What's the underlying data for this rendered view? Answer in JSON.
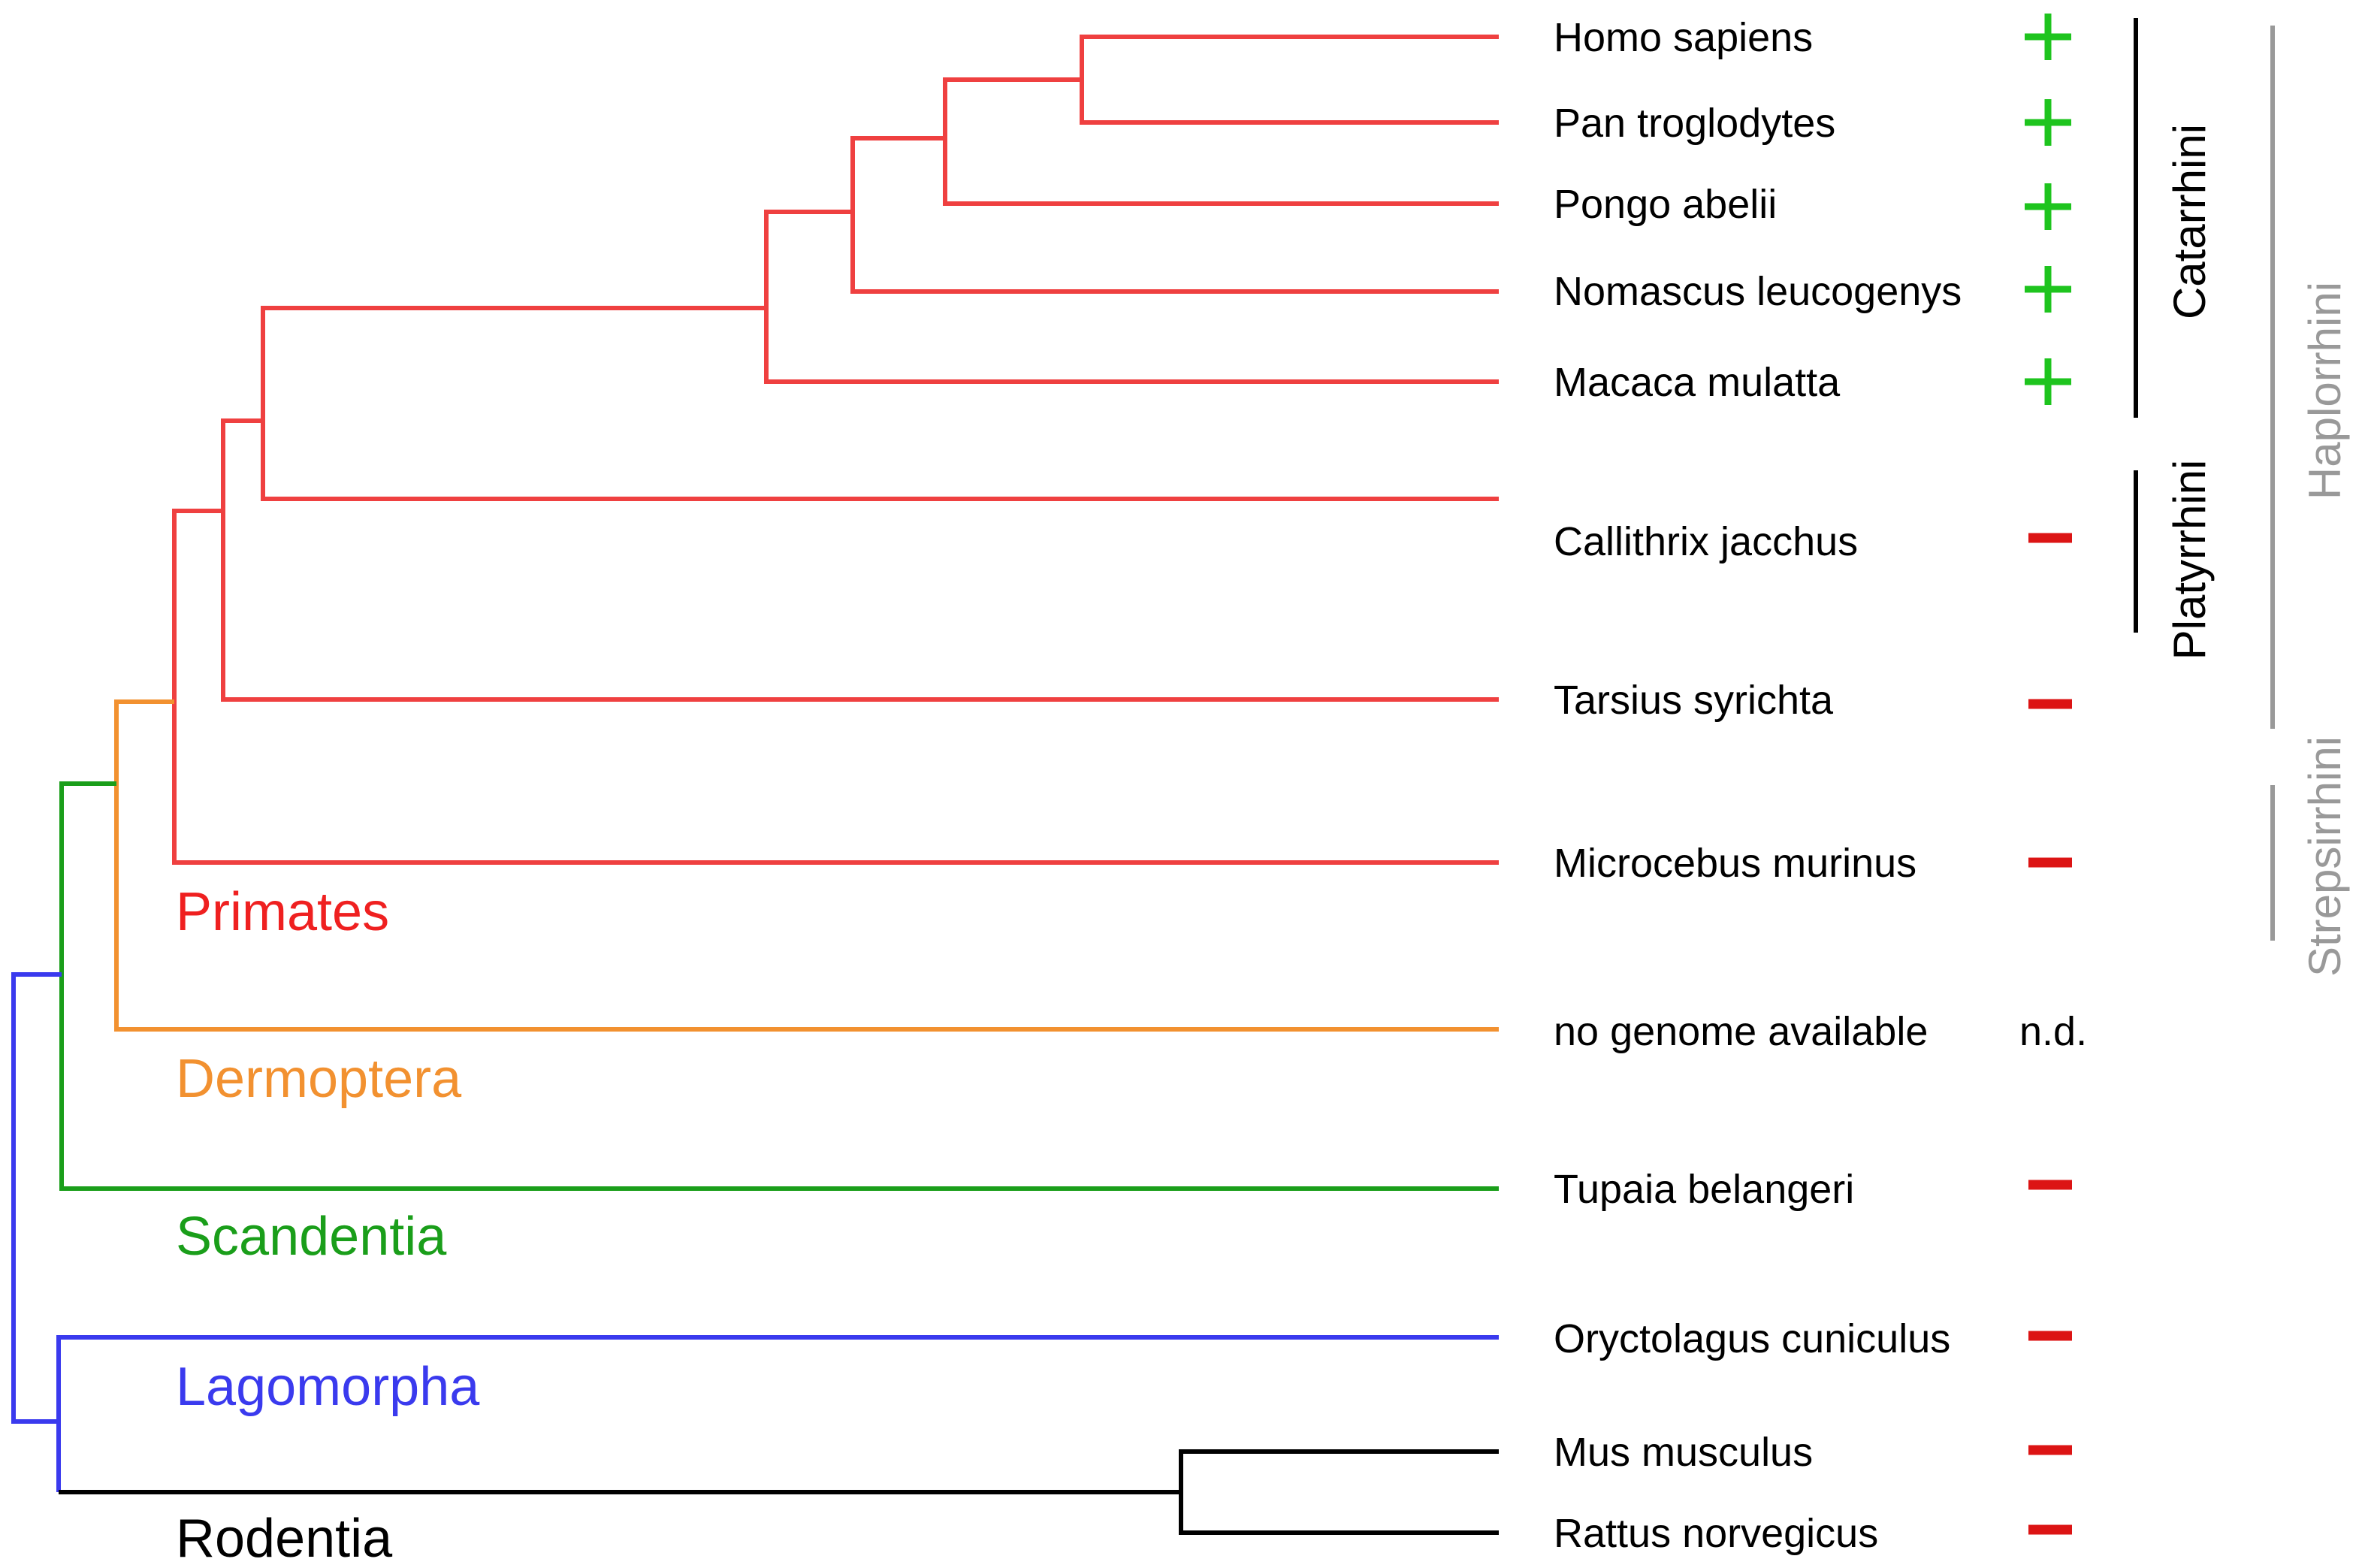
{
  "colors": {
    "primates": "#ef4040",
    "dermoptera": "#f29130",
    "scandentia": "#1a9e1a",
    "lagomorpha": "#3a3aee",
    "rodentia": "#000000",
    "present": "#1ec41e",
    "absent": "#dc1414",
    "clade_major": "#000000",
    "clade_minor": "#999999"
  },
  "orders": {
    "primates": "Primates",
    "dermoptera": "Dermoptera",
    "scandentia": "Scandentia",
    "lagomorpha": "Lagomorpha",
    "rodentia": "Rodentia"
  },
  "species": [
    {
      "name": "Homo sapiens",
      "status": "present"
    },
    {
      "name": "Pan troglodytes",
      "status": "present"
    },
    {
      "name": "Pongo abelii",
      "status": "present"
    },
    {
      "name": "Nomascus leucogenys",
      "status": "present"
    },
    {
      "name": "Macaca mulatta",
      "status": "present"
    },
    {
      "name": "Callithrix jacchus",
      "status": "absent"
    },
    {
      "name": "Tarsius syrichta",
      "status": "absent"
    },
    {
      "name": "Microcebus murinus",
      "status": "absent"
    },
    {
      "name": "no genome available",
      "status": "nd",
      "status_text": "n.d."
    },
    {
      "name": "Tupaia belangeri",
      "status": "absent"
    },
    {
      "name": "Oryctolagus cuniculus",
      "status": "absent"
    },
    {
      "name": "Mus musculus",
      "status": "absent"
    },
    {
      "name": "Rattus norvegicus",
      "status": "absent"
    }
  ],
  "clades": {
    "catarrhini": "Catarrhini",
    "platyrrhini": "Platyrrhini",
    "haplorrhini": "Haplorrhini",
    "strepsirrhini": "Strepsirrhini"
  }
}
